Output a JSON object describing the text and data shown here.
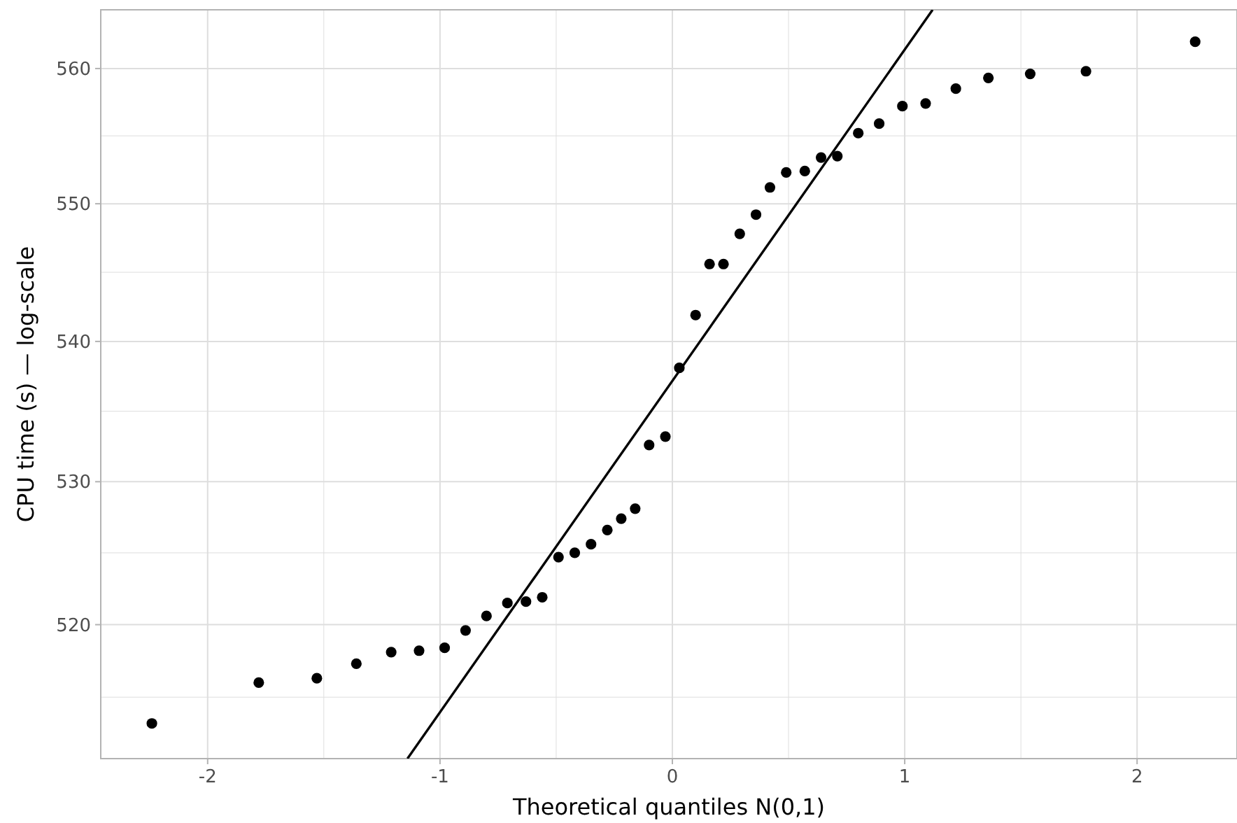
{
  "chart_data": {
    "type": "scatter",
    "xlabel": "Theoretical quantiles N(0,1)",
    "ylabel": "CPU time (s) — log-scale",
    "log": "y",
    "grid": true,
    "xlim": [
      -2.46,
      2.43
    ],
    "ylim": [
      510.8,
      564.4
    ],
    "xticks": [
      {
        "value": -2,
        "label": "-2"
      },
      {
        "value": -1.5,
        "label": null
      },
      {
        "value": -1,
        "label": "-1"
      },
      {
        "value": -0.5,
        "label": null
      },
      0,
      {
        "value": 0.5,
        "label": null
      },
      1,
      {
        "value": 1.5,
        "label": null
      },
      2
    ],
    "yticks": [
      {
        "value": 515,
        "label": null
      },
      520,
      {
        "value": 525,
        "label": null
      },
      530,
      {
        "value": 535,
        "label": null
      },
      540,
      {
        "value": 545,
        "label": null
      },
      550,
      {
        "value": 555,
        "label": null
      },
      560
    ],
    "series": [
      {
        "marker": "circle",
        "color": "#000000",
        "x": [
          -2.24,
          -1.78,
          -1.53,
          -1.36,
          -1.21,
          -1.09,
          -0.98,
          -0.89,
          -0.8,
          -0.71,
          -0.63,
          -0.56,
          -0.49,
          -0.42,
          -0.35,
          -0.28,
          -0.22,
          -0.16,
          -0.1,
          -0.03,
          0.03,
          0.1,
          0.16,
          0.22,
          0.29,
          0.36,
          0.42,
          0.49,
          0.57,
          0.64,
          0.71,
          0.8,
          0.89,
          0.99,
          1.09,
          1.22,
          1.36,
          1.54,
          1.78,
          2.25
        ],
        "values": [
          513.2,
          516.0,
          516.3,
          517.3,
          518.1,
          518.2,
          518.4,
          519.6,
          520.6,
          521.5,
          521.6,
          521.9,
          524.7,
          525.0,
          525.6,
          526.6,
          527.4,
          528.1,
          532.6,
          533.2,
          538.1,
          541.9,
          545.6,
          545.6,
          547.8,
          549.2,
          551.2,
          552.3,
          552.4,
          553.4,
          553.5,
          555.2,
          555.9,
          557.2,
          557.4,
          558.5,
          559.3,
          559.6,
          559.8,
          562.0
        ]
      },
      {
        "type": "line",
        "color": "#000000",
        "x": [
          -1.14,
          1.12
        ],
        "values": [
          510.8,
          564.4
        ]
      }
    ]
  }
}
